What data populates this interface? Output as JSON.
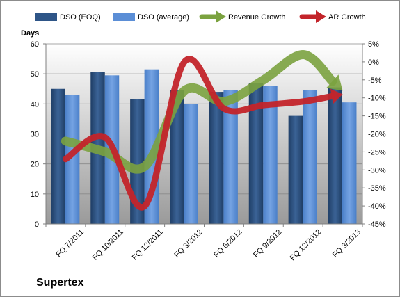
{
  "chart_data": {
    "type": "bar",
    "y_axis_label": "Days",
    "ylim": [
      0,
      60
    ],
    "y_ticks": [
      0,
      10,
      20,
      30,
      40,
      50,
      60
    ],
    "y2lim": [
      -45,
      5
    ],
    "y2_ticks": [
      "5%",
      "0%",
      "-5%",
      "-10%",
      "-15%",
      "-20%",
      "-25%",
      "-30%",
      "-35%",
      "-40%",
      "-45%"
    ],
    "y2_tick_values": [
      5,
      0,
      -5,
      -10,
      -15,
      -20,
      -25,
      -30,
      -35,
      -40,
      -45
    ],
    "categories": [
      "FQ 7/2011",
      "FQ 10/2011",
      "FQ 12/2011",
      "FQ 3/2012",
      "FQ 6/2012",
      "FQ 9/2012",
      "FQ 12/2012",
      "FQ 3/2013"
    ],
    "series": [
      {
        "name": "DSO (EOQ)",
        "kind": "bar",
        "axis": "left",
        "color": "#2e5587",
        "values": [
          45,
          50.5,
          41.5,
          44.5,
          44,
          47,
          36,
          45.5
        ]
      },
      {
        "name": "DSO (average)",
        "kind": "bar",
        "axis": "left",
        "color": "#5b8ed6",
        "values": [
          43,
          49.5,
          51.5,
          40,
          44.5,
          46,
          44.5,
          40.5
        ]
      },
      {
        "name": "Revenue Growth",
        "kind": "line",
        "axis": "right",
        "color": "#7ba23f",
        "values": [
          -22,
          -25,
          -29,
          -8,
          -11,
          -5,
          2,
          -8
        ]
      },
      {
        "name": "AR Growth",
        "kind": "line",
        "axis": "right",
        "color": "#c3242a",
        "values": [
          -27,
          -21,
          -40,
          0,
          -13,
          -12,
          -11,
          -9
        ]
      }
    ],
    "grid": true,
    "legend_position": "top"
  },
  "company": "Supertex"
}
